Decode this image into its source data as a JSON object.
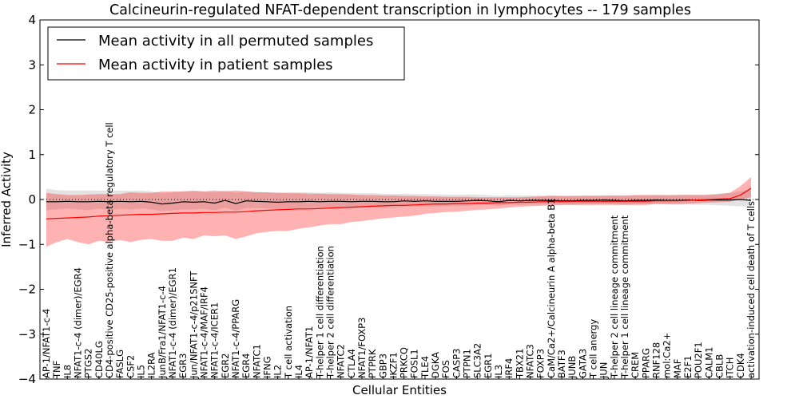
{
  "chart_data": {
    "type": "line",
    "title": "Calcineurin-regulated NFAT-dependent transcription in lymphocytes -- 179 samples",
    "xlabel": "Cellular Entities",
    "ylabel": "Inferred Activity",
    "ylim": [
      -4,
      4
    ],
    "yticks": [
      "4",
      "3",
      "2",
      "1",
      "0",
      "−1",
      "−2",
      "−3",
      "−4"
    ],
    "ytick_values": [
      4,
      3,
      2,
      1,
      0,
      -1,
      -2,
      -3,
      -4
    ],
    "grid": false,
    "legend_position": "top-left",
    "categories": [
      "AP-1/NFAT1-c-4",
      "TNF",
      "IL8",
      "NFAT1-c-4 (dimer)/EGR4",
      "PTGS2",
      "CD40LG",
      "CD4-positive CD25-positive alpha-beta regulatory T cell",
      "FASLG",
      "CSF2",
      "IL5",
      "IL2RA",
      "JunB/Fra1/NFAT1-c-4",
      "NFAT1-c-4 (dimer)/EGR1",
      "EGR3",
      "Jun/NFAT1-c-4/p21SNFT",
      "NFAT1-c-4/MAF/IRF4",
      "NFAT1-c-4/ICER1",
      "EGR2",
      "NFAT1-c-4/PPARG",
      "EGR4",
      "NFATC1",
      "IFNG",
      "IL2",
      "T cell activation",
      "IL4",
      "AP-1/NFAT1",
      "T-helper 1 cell differentiation",
      "T-helper 2 cell differentiation",
      "NFATC2",
      "CTLA4",
      "NFAT1/FOXP3",
      "PTPRK",
      "GBP3",
      "IKZF1",
      "PRKCQ",
      "FOSL1",
      "TLE4",
      "DGKA",
      "FOS",
      "CASP3",
      "PTPN1",
      "SLC3A2",
      "EGR1",
      "IL3",
      "IRF4",
      "TBX21",
      "NFATC3",
      "FOXP3",
      "CaM/Ca2+/Calcineurin A alpha-beta B1",
      "BATF3",
      "JUNB",
      "GATA3",
      "T cell anergy",
      "JUN",
      "T-helper 2 cell lineage commitment",
      "T-helper 1 cell lineage commitment",
      "CREM",
      "PPARG",
      "RNF128",
      "mol:Ca2+",
      "MAF",
      "E2F1",
      "POU2F1",
      "CALM1",
      "CBLB",
      "ITCH",
      "CDK4",
      "activation-induced cell death of T cells"
    ],
    "series": [
      {
        "name": "Mean activity in all permuted samples",
        "color": "#000000",
        "values": [
          -0.05,
          -0.05,
          -0.04,
          -0.05,
          -0.05,
          -0.04,
          -0.05,
          -0.04,
          -0.05,
          -0.04,
          -0.06,
          -0.1,
          -0.08,
          -0.05,
          -0.06,
          -0.05,
          -0.08,
          -0.02,
          -0.09,
          -0.03,
          -0.04,
          -0.05,
          -0.06,
          -0.05,
          -0.05,
          -0.04,
          -0.05,
          -0.04,
          -0.04,
          -0.05,
          -0.04,
          -0.04,
          -0.05,
          -0.05,
          -0.03,
          -0.04,
          -0.03,
          -0.04,
          -0.04,
          -0.04,
          -0.03,
          -0.02,
          -0.03,
          -0.05,
          -0.02,
          -0.03,
          -0.02,
          -0.02,
          -0.02,
          -0.03,
          -0.03,
          -0.02,
          -0.02,
          -0.01,
          -0.02,
          -0.03,
          -0.02,
          -0.02,
          -0.01,
          -0.02,
          -0.02,
          -0.01,
          -0.02,
          -0.01,
          -0.01,
          -0.01,
          0.0,
          -0.02
        ],
        "band_low": [
          -0.24,
          -0.22,
          -0.2,
          -0.22,
          -0.24,
          -0.2,
          -0.24,
          -0.21,
          -0.22,
          -0.2,
          -0.22,
          -0.26,
          -0.24,
          -0.22,
          -0.22,
          -0.21,
          -0.24,
          -0.18,
          -0.25,
          -0.19,
          -0.19,
          -0.2,
          -0.21,
          -0.2,
          -0.2,
          -0.19,
          -0.19,
          -0.18,
          -0.18,
          -0.19,
          -0.18,
          -0.17,
          -0.18,
          -0.18,
          -0.16,
          -0.16,
          -0.15,
          -0.16,
          -0.15,
          -0.15,
          -0.14,
          -0.12,
          -0.12,
          -0.14,
          -0.11,
          -0.12,
          -0.11,
          -0.11,
          -0.11,
          -0.12,
          -0.12,
          -0.11,
          -0.11,
          -0.1,
          -0.11,
          -0.12,
          -0.11,
          -0.11,
          -0.1,
          -0.11,
          -0.12,
          -0.11,
          -0.12,
          -0.12,
          -0.13,
          -0.14,
          -0.15,
          -0.18
        ],
        "band_high": [
          0.24,
          0.21,
          0.2,
          0.2,
          0.2,
          0.2,
          0.19,
          0.2,
          0.19,
          0.2,
          0.18,
          0.14,
          0.16,
          0.18,
          0.18,
          0.18,
          0.16,
          0.2,
          0.15,
          0.18,
          0.17,
          0.16,
          0.15,
          0.16,
          0.16,
          0.16,
          0.15,
          0.16,
          0.15,
          0.14,
          0.14,
          0.14,
          0.13,
          0.12,
          0.13,
          0.12,
          0.12,
          0.11,
          0.11,
          0.11,
          0.11,
          0.11,
          0.1,
          0.08,
          0.1,
          0.09,
          0.09,
          0.09,
          0.09,
          0.08,
          0.08,
          0.09,
          0.09,
          0.1,
          0.09,
          0.08,
          0.09,
          0.09,
          0.1,
          0.09,
          0.1,
          0.11,
          0.1,
          0.12,
          0.13,
          0.15,
          0.18,
          0.22
        ]
      },
      {
        "name": "Mean activity in patient samples",
        "color": "#ff0000",
        "values": [
          -0.43,
          -0.42,
          -0.41,
          -0.4,
          -0.39,
          -0.37,
          -0.36,
          -0.35,
          -0.34,
          -0.33,
          -0.33,
          -0.32,
          -0.31,
          -0.3,
          -0.3,
          -0.29,
          -0.29,
          -0.28,
          -0.28,
          -0.27,
          -0.25,
          -0.24,
          -0.23,
          -0.22,
          -0.21,
          -0.21,
          -0.2,
          -0.19,
          -0.18,
          -0.17,
          -0.16,
          -0.15,
          -0.14,
          -0.13,
          -0.13,
          -0.12,
          -0.11,
          -0.1,
          -0.1,
          -0.09,
          -0.09,
          -0.08,
          -0.08,
          -0.07,
          -0.07,
          -0.06,
          -0.06,
          -0.05,
          -0.05,
          -0.05,
          -0.04,
          -0.04,
          -0.04,
          -0.04,
          -0.04,
          -0.04,
          -0.04,
          -0.04,
          -0.03,
          -0.03,
          -0.03,
          -0.02,
          -0.01,
          0.0,
          0.01,
          0.02,
          0.1,
          0.25
        ],
        "band_low": [
          -1.05,
          -0.95,
          -0.88,
          -0.95,
          -1.0,
          -0.92,
          -0.95,
          -0.9,
          -0.95,
          -0.9,
          -0.88,
          -0.92,
          -0.92,
          -0.85,
          -0.88,
          -0.8,
          -0.82,
          -0.8,
          -0.88,
          -0.82,
          -0.75,
          -0.72,
          -0.7,
          -0.7,
          -0.65,
          -0.62,
          -0.58,
          -0.55,
          -0.55,
          -0.5,
          -0.48,
          -0.45,
          -0.42,
          -0.4,
          -0.38,
          -0.36,
          -0.32,
          -0.3,
          -0.28,
          -0.27,
          -0.25,
          -0.23,
          -0.22,
          -0.2,
          -0.18,
          -0.16,
          -0.15,
          -0.14,
          -0.13,
          -0.12,
          -0.12,
          -0.12,
          -0.12,
          -0.12,
          -0.12,
          -0.12,
          -0.12,
          -0.12,
          -0.1,
          -0.1,
          -0.1,
          -0.09,
          -0.08,
          -0.07,
          -0.06,
          -0.05,
          0.0,
          0.05
        ],
        "band_high": [
          0.15,
          0.12,
          0.1,
          0.1,
          0.11,
          0.12,
          0.12,
          0.12,
          0.16,
          0.15,
          0.15,
          0.18,
          0.18,
          0.18,
          0.2,
          0.18,
          0.2,
          0.18,
          0.2,
          0.18,
          0.16,
          0.16,
          0.15,
          0.14,
          0.14,
          0.13,
          0.13,
          0.12,
          0.12,
          0.11,
          0.1,
          0.1,
          0.09,
          0.09,
          0.08,
          0.08,
          0.07,
          0.07,
          0.06,
          0.06,
          0.06,
          0.05,
          0.05,
          0.05,
          0.05,
          0.05,
          0.06,
          0.07,
          0.08,
          0.08,
          0.08,
          0.08,
          0.08,
          0.08,
          0.09,
          0.09,
          0.1,
          0.1,
          0.1,
          0.1,
          0.1,
          0.1,
          0.1,
          0.1,
          0.12,
          0.15,
          0.3,
          0.5
        ]
      }
    ],
    "zero_line": 0
  }
}
